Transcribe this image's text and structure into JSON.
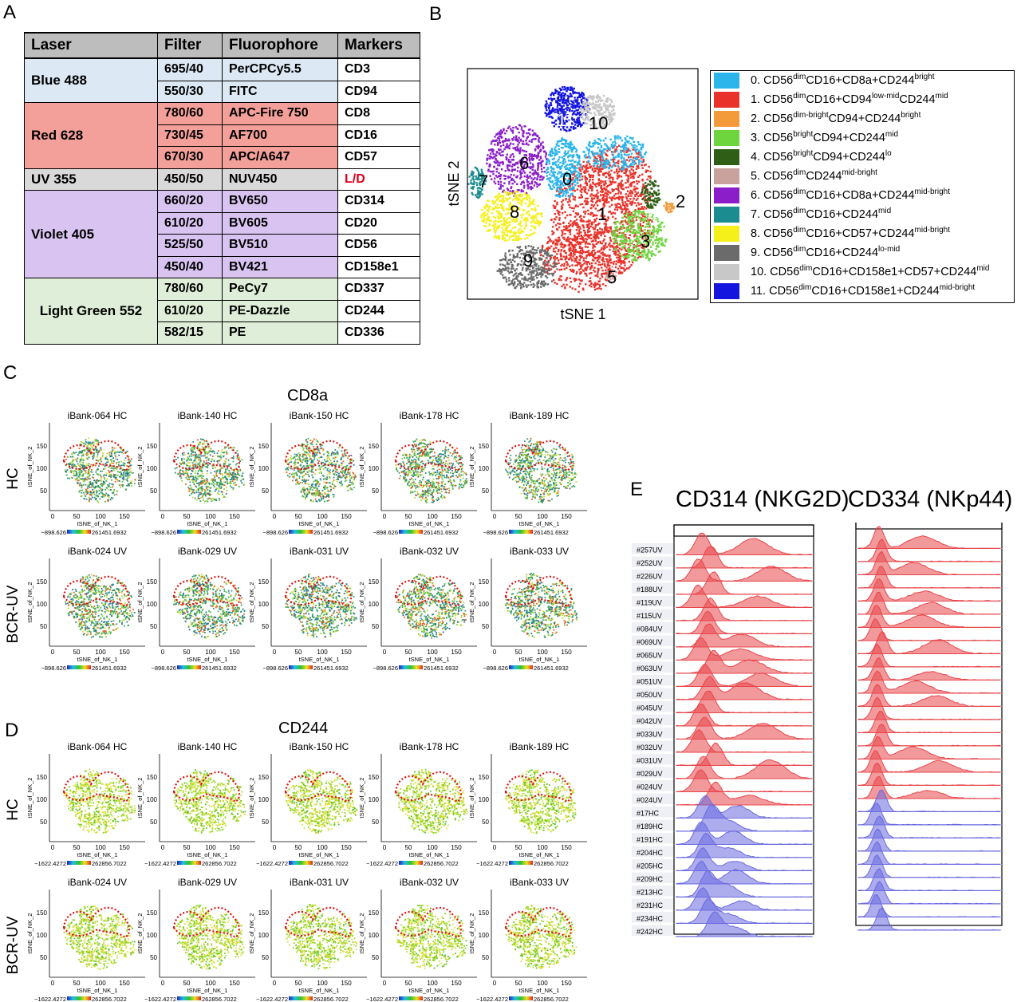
{
  "panels": {
    "a": "A",
    "b": "B",
    "c": "C",
    "d": "D",
    "e": "E"
  },
  "table": {
    "headers": [
      "Laser",
      "Filter",
      "Fluorophore",
      "Markers"
    ],
    "groups": [
      {
        "laser": "Blue 488",
        "color": "#dce9f5",
        "rows": [
          [
            "695/40",
            "PerCPCy5.5",
            "CD3"
          ],
          [
            "550/30",
            "FITC",
            "CD94"
          ]
        ]
      },
      {
        "laser": "Red 628",
        "color": "#f4a09a",
        "rows": [
          [
            "780/60",
            "APC-Fire 750",
            "CD8"
          ],
          [
            "730/45",
            "AF700",
            "CD16"
          ],
          [
            "670/30",
            "APC/A647",
            "CD57"
          ]
        ]
      },
      {
        "laser": "UV 355",
        "color": "#d9d9d9",
        "rows": [
          [
            "450/50",
            "NUV450",
            "L/D"
          ]
        ]
      },
      {
        "laser": "Violet 405",
        "color": "#d9c3f0",
        "rows": [
          [
            "660/20",
            "BV650",
            "CD314"
          ],
          [
            "610/20",
            "BV605",
            "CD20"
          ],
          [
            "525/50",
            "BV510",
            "CD56"
          ],
          [
            "450/40",
            "BV421",
            "CD158e1"
          ]
        ]
      },
      {
        "laser": "Light Green 552",
        "color": "#dfeed8",
        "rows": [
          [
            "780/60",
            "PeCy7",
            "CD337"
          ],
          [
            "610/20",
            "PE-Dazzle",
            "CD244"
          ],
          [
            "582/15",
            "PE",
            "CD336"
          ]
        ]
      }
    ]
  },
  "tsne": {
    "xlabel": "tSNE 1",
    "ylabel": "tSNE 2",
    "clusters": [
      {
        "id": "0",
        "color": "#2bb5ea",
        "label": [
          [
            "0. CD56",
            ""
          ],
          [
            "dim",
            "sup"
          ],
          [
            "CD16+CD8a+CD244",
            ""
          ],
          [
            "bright",
            "sup"
          ]
        ]
      },
      {
        "id": "1",
        "color": "#e8322a",
        "label": [
          [
            "1. CD56",
            ""
          ],
          [
            "dim",
            "sup"
          ],
          [
            "CD16+CD94",
            ""
          ],
          [
            "low-mid",
            "sup"
          ],
          [
            "CD244",
            ""
          ],
          [
            "mid",
            "sup"
          ]
        ]
      },
      {
        "id": "2",
        "color": "#f39a3a",
        "label": [
          [
            "2. CD56",
            ""
          ],
          [
            "dim-bright",
            "sup"
          ],
          [
            "CD94+CD244",
            ""
          ],
          [
            "bright",
            "sup"
          ]
        ]
      },
      {
        "id": "3",
        "color": "#6ed53f",
        "label": [
          [
            "3. CD56",
            ""
          ],
          [
            "bright",
            "sup"
          ],
          [
            "CD94+CD244",
            ""
          ],
          [
            "mid",
            "sup"
          ]
        ]
      },
      {
        "id": "4",
        "color": "#2f5f16",
        "label": [
          [
            "4. CD56",
            ""
          ],
          [
            "bright",
            "sup"
          ],
          [
            "CD94+CD244",
            ""
          ],
          [
            "lo",
            "sup"
          ]
        ]
      },
      {
        "id": "5",
        "color": "#c9a29e",
        "label": [
          [
            "5. CD56",
            ""
          ],
          [
            "dim",
            "sup"
          ],
          [
            "CD244",
            ""
          ],
          [
            "mid-bright",
            "sup"
          ]
        ]
      },
      {
        "id": "6",
        "color": "#8b1ec8",
        "label": [
          [
            "6. CD56",
            ""
          ],
          [
            "dim",
            "sup"
          ],
          [
            "CD16+CD8a+CD244",
            ""
          ],
          [
            "mid-bright",
            "sup"
          ]
        ]
      },
      {
        "id": "7",
        "color": "#1b8c8f",
        "label": [
          [
            "7. CD56",
            ""
          ],
          [
            "dim",
            "sup"
          ],
          [
            "CD16+CD244",
            ""
          ],
          [
            "mid",
            "sup"
          ]
        ]
      },
      {
        "id": "8",
        "color": "#f5ef1a",
        "label": [
          [
            "8. CD56",
            ""
          ],
          [
            "dim",
            "sup"
          ],
          [
            "CD16+CD57+CD244",
            ""
          ],
          [
            "mid-bright",
            "sup"
          ]
        ]
      },
      {
        "id": "9",
        "color": "#6b6b6b",
        "label": [
          [
            "9. CD56",
            ""
          ],
          [
            "dim",
            "sup"
          ],
          [
            "CD16+CD244",
            ""
          ],
          [
            "lo-mid",
            "sup"
          ]
        ]
      },
      {
        "id": "10",
        "color": "#c8c8c8",
        "label": [
          [
            "10. CD56",
            ""
          ],
          [
            "dim",
            "sup"
          ],
          [
            "CD16+CD158e1+CD57+CD244",
            ""
          ],
          [
            "mid",
            "sup"
          ]
        ]
      },
      {
        "id": "11",
        "color": "#1515e0",
        "label": [
          [
            "11. CD56",
            ""
          ],
          [
            "dim",
            "sup"
          ],
          [
            "CD16+CD158e1+CD244",
            ""
          ],
          [
            "mid-bright",
            "sup"
          ]
        ]
      }
    ]
  },
  "cd8a": {
    "title": "CD8a",
    "rows": [
      {
        "group": "HC",
        "samples": [
          "iBank-064 HC",
          "iBank-140 HC",
          "iBank-150 HC",
          "iBank-178 HC",
          "iBank-189 HC"
        ]
      },
      {
        "group": "BCR-UV",
        "samples": [
          "iBank-024 UV",
          "iBank-029 UV",
          "iBank-031 UV",
          "iBank-032 UV",
          "iBank-033 UV"
        ]
      }
    ],
    "scale_min": "−898.626",
    "scale_max": "261451.6932"
  },
  "cd244": {
    "title": "CD244",
    "rows": [
      {
        "group": "HC",
        "samples": [
          "iBank-064 HC",
          "iBank-140 HC",
          "iBank-150 HC",
          "iBank-178 HC",
          "iBank-189 HC"
        ]
      },
      {
        "group": "BCR-UV",
        "samples": [
          "iBank-024 UV",
          "iBank-029 UV",
          "iBank-031 UV",
          "iBank-032 UV",
          "iBank-033 UV"
        ]
      }
    ],
    "scale_min": "−1622.4272",
    "scale_max": "262856.7022"
  },
  "mini_axes": {
    "xlabel": "tSNE_of_NK_1",
    "ylabel": "tSNE_of_NK_2",
    "xticks": [
      "0",
      "50",
      "100",
      "150"
    ],
    "yticks": [
      "50",
      "100",
      "150"
    ]
  },
  "histograms": {
    "left_title": "CD314 (NKG2D)",
    "right_title": "CD334 (NKp44)",
    "samples": [
      "#257UV",
      "#252UV",
      "#226UV",
      "#188UV",
      "#119UV",
      "#115UV",
      "#084UV",
      "#069UV",
      "#065UV",
      "#063UV",
      "#051UV",
      "#050UV",
      "#045UV",
      "#042UV",
      "#033UV",
      "#032UV",
      "#031UV",
      "#029UV",
      "#024UV",
      "#024UV",
      "#17HC",
      "#189HC",
      "#191HC",
      "#204HC",
      "#205HC",
      "#209HC",
      "#213HC",
      "#231HC",
      "#234HC",
      "#242HC"
    ],
    "uv_color": "#e8464a",
    "hc_color": "#6a6ae0"
  }
}
